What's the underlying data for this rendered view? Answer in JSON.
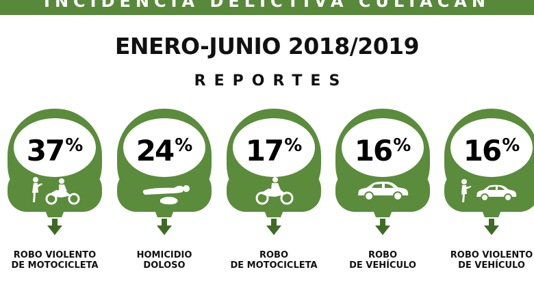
{
  "header": {
    "banner": "INCIDENCIA DELICTIVA CULIACÁN",
    "title": "ENERO-JUNIO 2018/2019",
    "subtitle": "REPORTES"
  },
  "colors": {
    "green": "#5a8c3c",
    "dark_green": "#3f6a26",
    "white": "#ffffff"
  },
  "chart_data": {
    "type": "table",
    "title": "ENERO-JUNIO 2018/2019",
    "categories": [
      [
        "ROBO VIOLENTO",
        "DE MOTOCICLETA"
      ],
      [
        "HOMICIDIO",
        "DOLOSO"
      ],
      [
        "ROBO",
        "DE MOTOCICLETA"
      ],
      [
        "ROBO",
        "DE VEHÍCULO"
      ],
      [
        "ROBO VIOLENTO",
        "DE VEHÍCULO"
      ]
    ],
    "values": [
      37,
      24,
      17,
      16,
      16
    ],
    "unit": "%",
    "icons": [
      "robbery-motorcycle-icon",
      "homicide-icon",
      "motorcycle-icon",
      "car-icon",
      "robbery-car-icon"
    ]
  }
}
